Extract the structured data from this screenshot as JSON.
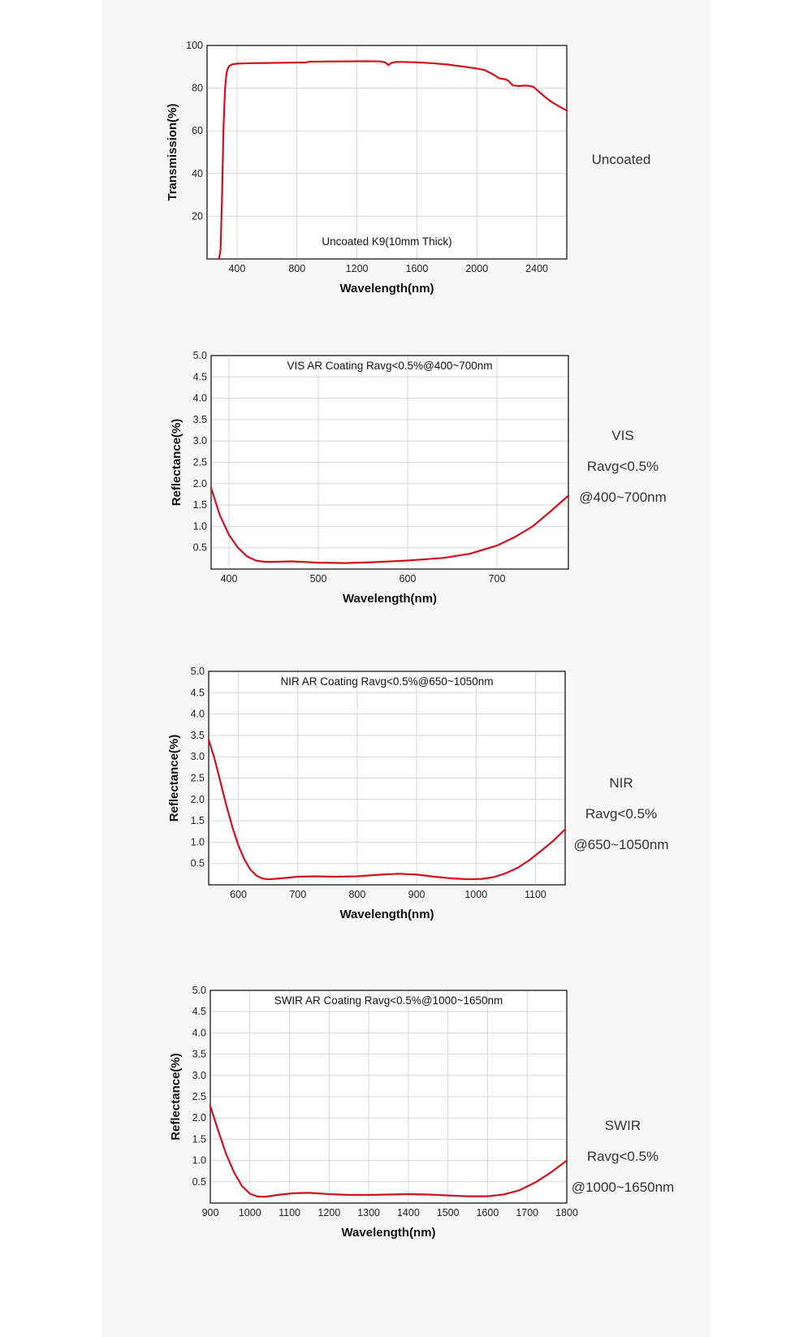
{
  "chart_data": [
    {
      "type": "line",
      "title": "",
      "annotation": "Uncoated K9(10mm Thick)",
      "xlabel": "Wavelength(nm)",
      "ylabel": "Transmission(%)",
      "xlim": [
        200,
        2600
      ],
      "ylim": [
        0,
        100
      ],
      "xticks": [
        400,
        800,
        1200,
        1600,
        2000,
        2400
      ],
      "yticks": [
        20,
        40,
        60,
        80,
        100
      ],
      "grid": true,
      "series": [
        {
          "color": "#d0111a",
          "x": [
            280,
            290,
            300,
            310,
            320,
            330,
            340,
            350,
            370,
            400,
            500,
            600,
            700,
            800,
            860,
            880,
            1000,
            1100,
            1200,
            1300,
            1360,
            1390,
            1410,
            1430,
            1460,
            1500,
            1600,
            1700,
            1800,
            1900,
            2000,
            2050,
            2100,
            2150,
            2190,
            2210,
            2240,
            2280,
            2320,
            2360,
            2380,
            2400,
            2450,
            2500,
            2550,
            2600
          ],
          "y": [
            0,
            4,
            30,
            62,
            80,
            87,
            89.5,
            90.5,
            91.2,
            91.5,
            91.7,
            91.8,
            91.9,
            92,
            92,
            92.4,
            92.5,
            92.5,
            92.6,
            92.6,
            92.5,
            92,
            90.8,
            91.8,
            92.3,
            92.3,
            92.1,
            91.7,
            91.1,
            90.2,
            89.2,
            88.5,
            86.8,
            84.6,
            84.2,
            83.5,
            81.3,
            81,
            81.2,
            81,
            80.5,
            79.2,
            76.2,
            73.5,
            71.4,
            69.5
          ]
        }
      ]
    },
    {
      "type": "line",
      "title": "",
      "annotation": "VIS AR Coating Ravg<0.5%@400~700nm",
      "xlabel": "Wavelength(nm)",
      "ylabel": "Reflectance(%)",
      "xlim": [
        380,
        780
      ],
      "ylim": [
        0,
        5
      ],
      "xticks": [
        400,
        500,
        600,
        700
      ],
      "yticks": [
        0.5,
        1.0,
        1.5,
        2.0,
        2.5,
        3.0,
        3.5,
        4.0,
        4.5,
        5.0
      ],
      "grid": true,
      "series": [
        {
          "color": "#d0111a",
          "x": [
            380,
            390,
            400,
            410,
            420,
            430,
            440,
            450,
            470,
            500,
            530,
            560,
            600,
            640,
            670,
            700,
            720,
            740,
            760,
            780
          ],
          "y": [
            1.9,
            1.25,
            0.8,
            0.5,
            0.3,
            0.2,
            0.17,
            0.17,
            0.18,
            0.15,
            0.14,
            0.16,
            0.2,
            0.26,
            0.36,
            0.55,
            0.75,
            1.0,
            1.35,
            1.72
          ]
        }
      ]
    },
    {
      "type": "line",
      "title": "",
      "annotation": "NIR AR Coating Ravg<0.5%@650~1050nm",
      "xlabel": "Wavelength(nm)",
      "ylabel": "Reflectance(%)",
      "xlim": [
        550,
        1150
      ],
      "ylim": [
        0,
        5
      ],
      "xticks": [
        600,
        700,
        800,
        900,
        1000,
        1100
      ],
      "yticks": [
        0.5,
        1.0,
        1.5,
        2.0,
        2.5,
        3.0,
        3.5,
        4.0,
        4.5,
        5.0
      ],
      "grid": true,
      "series": [
        {
          "color": "#d0111a",
          "x": [
            550,
            560,
            570,
            580,
            590,
            600,
            610,
            620,
            630,
            640,
            650,
            670,
            700,
            730,
            760,
            800,
            840,
            870,
            900,
            930,
            960,
            990,
            1010,
            1030,
            1050,
            1070,
            1090,
            1110,
            1130,
            1150
          ],
          "y": [
            3.4,
            2.95,
            2.4,
            1.85,
            1.35,
            0.92,
            0.6,
            0.36,
            0.22,
            0.15,
            0.13,
            0.15,
            0.19,
            0.2,
            0.19,
            0.2,
            0.24,
            0.26,
            0.24,
            0.19,
            0.15,
            0.13,
            0.14,
            0.18,
            0.27,
            0.4,
            0.58,
            0.8,
            1.03,
            1.3
          ]
        }
      ]
    },
    {
      "type": "line",
      "title": "",
      "annotation": "SWIR AR Coating Ravg<0.5%@1000~1650nm",
      "xlabel": "Wavelength(nm)",
      "ylabel": "Reflectance(%)",
      "xlim": [
        900,
        1800
      ],
      "ylim": [
        0,
        5
      ],
      "xticks": [
        900,
        1000,
        1100,
        1200,
        1300,
        1400,
        1500,
        1600,
        1700,
        1800
      ],
      "yticks": [
        0.5,
        1.0,
        1.5,
        2.0,
        2.5,
        3.0,
        3.5,
        4.0,
        4.5,
        5.0
      ],
      "grid": true,
      "series": [
        {
          "color": "#d0111a",
          "x": [
            900,
            920,
            940,
            960,
            980,
            1000,
            1020,
            1040,
            1070,
            1110,
            1150,
            1200,
            1250,
            1300,
            1350,
            1400,
            1450,
            1500,
            1550,
            1600,
            1640,
            1680,
            1720,
            1760,
            1800
          ],
          "y": [
            2.28,
            1.7,
            1.15,
            0.72,
            0.4,
            0.22,
            0.15,
            0.15,
            0.19,
            0.23,
            0.24,
            0.21,
            0.19,
            0.19,
            0.2,
            0.21,
            0.2,
            0.18,
            0.16,
            0.16,
            0.2,
            0.3,
            0.48,
            0.72,
            1.0
          ]
        }
      ]
    }
  ],
  "side_labels": [
    {
      "lines": [
        "Uncoated"
      ]
    },
    {
      "lines": [
        "VIS",
        "Ravg<0.5%",
        "@400~700nm"
      ]
    },
    {
      "lines": [
        "NIR",
        "Ravg<0.5%",
        "@650~1050nm"
      ]
    },
    {
      "lines": [
        "SWIR",
        "Ravg<0.5%",
        "@1000~1650nm"
      ]
    }
  ]
}
